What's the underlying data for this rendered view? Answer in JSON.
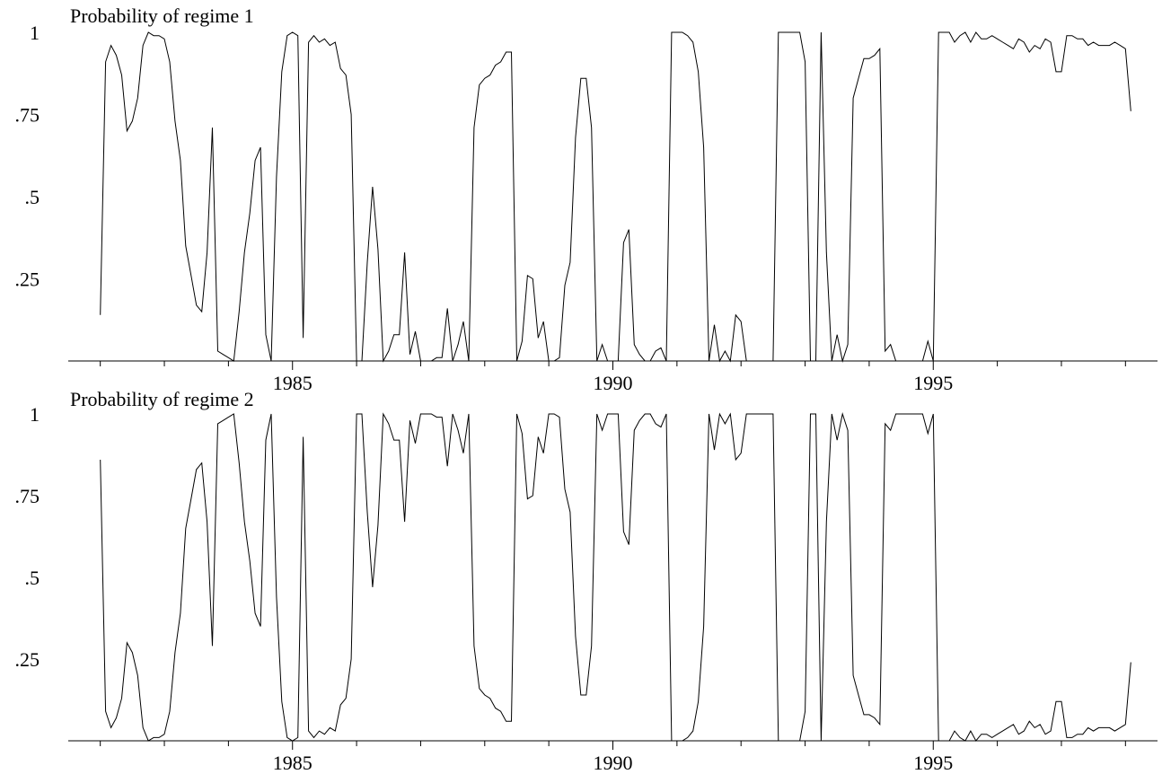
{
  "colors": {
    "line": "#000000",
    "axis": "#000000",
    "background": "#ffffff"
  },
  "chart_data": [
    {
      "type": "line",
      "title": "Probability of regime 1",
      "xlabel": "",
      "ylabel": "",
      "xlim": [
        1981.5,
        1998.5
      ],
      "ylim": [
        0,
        1
      ],
      "x_start": 1982.0,
      "x_step": 0.0833333,
      "grid": false,
      "legend": "none",
      "x_ticks": [
        1985,
        1990,
        1995
      ],
      "x_tick_labels": [
        "1985",
        "1990",
        "1995"
      ],
      "y_ticks": [
        0.25,
        0.5,
        0.75,
        1
      ],
      "y_tick_labels": [
        ".25",
        ".5",
        ".75",
        "1"
      ],
      "series": [
        {
          "values": [
            0.14,
            0.91,
            0.96,
            0.93,
            0.87,
            0.7,
            0.73,
            0.8,
            0.96,
            1.0,
            0.99,
            0.99,
            0.98,
            0.91,
            0.73,
            0.61,
            0.35,
            0.26,
            0.17,
            0.15,
            0.33,
            0.71,
            0.03,
            0.02,
            0.01,
            0.0,
            0.15,
            0.33,
            0.45,
            0.61,
            0.65,
            0.08,
            0.0,
            0.56,
            0.88,
            0.99,
            1.0,
            0.99,
            0.07,
            0.97,
            0.99,
            0.97,
            0.98,
            0.96,
            0.97,
            0.89,
            0.87,
            0.75,
            0.0,
            0.0,
            0.3,
            0.53,
            0.34,
            0.0,
            0.03,
            0.08,
            0.08,
            0.33,
            0.02,
            0.09,
            0.0,
            0.0,
            0.0,
            0.01,
            0.01,
            0.16,
            0.0,
            0.05,
            0.12,
            0.0,
            0.71,
            0.84,
            0.86,
            0.87,
            0.9,
            0.91,
            0.94,
            0.94,
            0.0,
            0.06,
            0.26,
            0.25,
            0.07,
            0.12,
            0.0,
            0.0,
            0.01,
            0.23,
            0.3,
            0.68,
            0.86,
            0.86,
            0.71,
            0.0,
            0.05,
            0.0,
            0.0,
            0.0,
            0.36,
            0.4,
            0.05,
            0.02,
            0.0,
            0.0,
            0.03,
            0.04,
            0.0,
            1.0,
            1.0,
            1.0,
            0.99,
            0.97,
            0.88,
            0.65,
            0.0,
            0.11,
            0.0,
            0.03,
            0.0,
            0.14,
            0.12,
            0.0,
            0.0,
            0.0,
            0.0,
            0.0,
            0.0,
            1.0,
            1.0,
            1.0,
            1.0,
            1.0,
            0.91,
            0.0,
            0.0,
            1.0,
            0.33,
            0.0,
            0.08,
            0.0,
            0.05,
            0.8,
            0.86,
            0.92,
            0.92,
            0.93,
            0.95,
            0.03,
            0.05,
            0.0,
            0.0,
            0.0,
            0.0,
            0.0,
            0.0,
            0.06,
            0.0,
            1.0,
            1.0,
            1.0,
            0.97,
            0.99,
            1.0,
            0.97,
            1.0,
            0.98,
            0.98,
            0.99,
            0.98,
            0.97,
            0.96,
            0.95,
            0.98,
            0.97,
            0.94,
            0.96,
            0.95,
            0.98,
            0.97,
            0.88,
            0.88,
            0.99,
            0.99,
            0.98,
            0.98,
            0.96,
            0.97,
            0.96,
            0.96,
            0.96,
            0.97,
            0.96,
            0.95,
            0.76
          ]
        }
      ]
    },
    {
      "type": "line",
      "title": "Probability of regime 2",
      "xlabel": "",
      "ylabel": "",
      "xlim": [
        1981.5,
        1998.5
      ],
      "ylim": [
        0,
        1
      ],
      "x_start": 1982.0,
      "x_step": 0.0833333,
      "grid": false,
      "legend": "none",
      "x_ticks": [
        1985,
        1990,
        1995
      ],
      "x_tick_labels": [
        "1985",
        "1990",
        "1995"
      ],
      "y_ticks": [
        0.25,
        0.5,
        0.75,
        1
      ],
      "y_tick_labels": [
        ".25",
        ".5",
        ".75",
        "1"
      ],
      "series": [
        {
          "values": [
            0.86,
            0.09,
            0.04,
            0.07,
            0.13,
            0.3,
            0.27,
            0.2,
            0.04,
            0.0,
            0.01,
            0.01,
            0.02,
            0.09,
            0.27,
            0.39,
            0.65,
            0.74,
            0.83,
            0.85,
            0.67,
            0.29,
            0.97,
            0.98,
            0.99,
            1.0,
            0.85,
            0.67,
            0.55,
            0.39,
            0.35,
            0.92,
            1.0,
            0.44,
            0.12,
            0.01,
            0.0,
            0.01,
            0.93,
            0.03,
            0.01,
            0.03,
            0.02,
            0.04,
            0.03,
            0.11,
            0.13,
            0.25,
            1.0,
            1.0,
            0.7,
            0.47,
            0.66,
            1.0,
            0.97,
            0.92,
            0.92,
            0.67,
            0.98,
            0.91,
            1.0,
            1.0,
            1.0,
            0.99,
            0.99,
            0.84,
            1.0,
            0.95,
            0.88,
            1.0,
            0.29,
            0.16,
            0.14,
            0.13,
            0.1,
            0.09,
            0.06,
            0.06,
            1.0,
            0.94,
            0.74,
            0.75,
            0.93,
            0.88,
            1.0,
            1.0,
            0.99,
            0.77,
            0.7,
            0.32,
            0.14,
            0.14,
            0.29,
            1.0,
            0.95,
            1.0,
            1.0,
            1.0,
            0.64,
            0.6,
            0.95,
            0.98,
            1.0,
            1.0,
            0.97,
            0.96,
            1.0,
            0.0,
            0.0,
            0.0,
            0.01,
            0.03,
            0.12,
            0.35,
            1.0,
            0.89,
            1.0,
            0.97,
            1.0,
            0.86,
            0.88,
            1.0,
            1.0,
            1.0,
            1.0,
            1.0,
            1.0,
            0.0,
            0.0,
            0.0,
            0.0,
            0.0,
            0.09,
            1.0,
            1.0,
            0.0,
            0.67,
            1.0,
            0.92,
            1.0,
            0.95,
            0.2,
            0.14,
            0.08,
            0.08,
            0.07,
            0.05,
            0.97,
            0.95,
            1.0,
            1.0,
            1.0,
            1.0,
            1.0,
            1.0,
            0.94,
            1.0,
            0.0,
            0.0,
            0.0,
            0.03,
            0.01,
            0.0,
            0.03,
            0.0,
            0.02,
            0.02,
            0.01,
            0.02,
            0.03,
            0.04,
            0.05,
            0.02,
            0.03,
            0.06,
            0.04,
            0.05,
            0.02,
            0.03,
            0.12,
            0.12,
            0.01,
            0.01,
            0.02,
            0.02,
            0.04,
            0.03,
            0.04,
            0.04,
            0.04,
            0.03,
            0.04,
            0.05,
            0.24
          ]
        }
      ]
    }
  ]
}
